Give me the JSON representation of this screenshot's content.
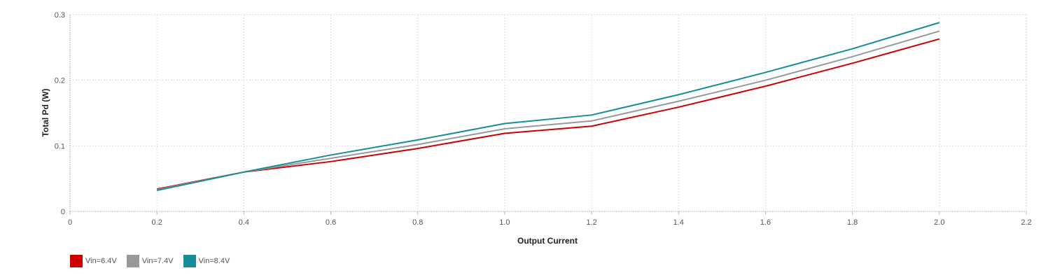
{
  "chart_data": {
    "type": "line",
    "title": "",
    "xlabel": "Output Current",
    "ylabel": "Total Pd (W)",
    "xlim": [
      0,
      2.2
    ],
    "ylim": [
      0,
      0.3
    ],
    "x_ticks": [
      "0",
      "0.2",
      "0.4",
      "0.6",
      "0.8",
      "1.0",
      "1.2",
      "1.4",
      "1.6",
      "1.8",
      "2.0",
      "2.2"
    ],
    "y_ticks": [
      "0",
      "0.1",
      "0.2",
      "0.3"
    ],
    "grid": true,
    "legend_position": "bottom-left",
    "x": [
      0.2,
      0.4,
      0.6,
      0.8,
      1.0,
      1.2,
      1.4,
      1.6,
      1.8,
      2.0
    ],
    "series": [
      {
        "name": "Vin=6.4V",
        "color": "#cc0000",
        "values": [
          0.034,
          0.06,
          0.076,
          0.096,
          0.119,
          0.13,
          0.159,
          0.191,
          0.226,
          0.263
        ]
      },
      {
        "name": "Vin=7.4V",
        "color": "#999999",
        "values": [
          0.033,
          0.06,
          0.081,
          0.102,
          0.126,
          0.138,
          0.168,
          0.2,
          0.236,
          0.275
        ]
      },
      {
        "name": "Vin=8.4V",
        "color": "#168d99",
        "values": [
          0.032,
          0.06,
          0.086,
          0.109,
          0.134,
          0.147,
          0.178,
          0.212,
          0.248,
          0.288
        ]
      }
    ]
  }
}
